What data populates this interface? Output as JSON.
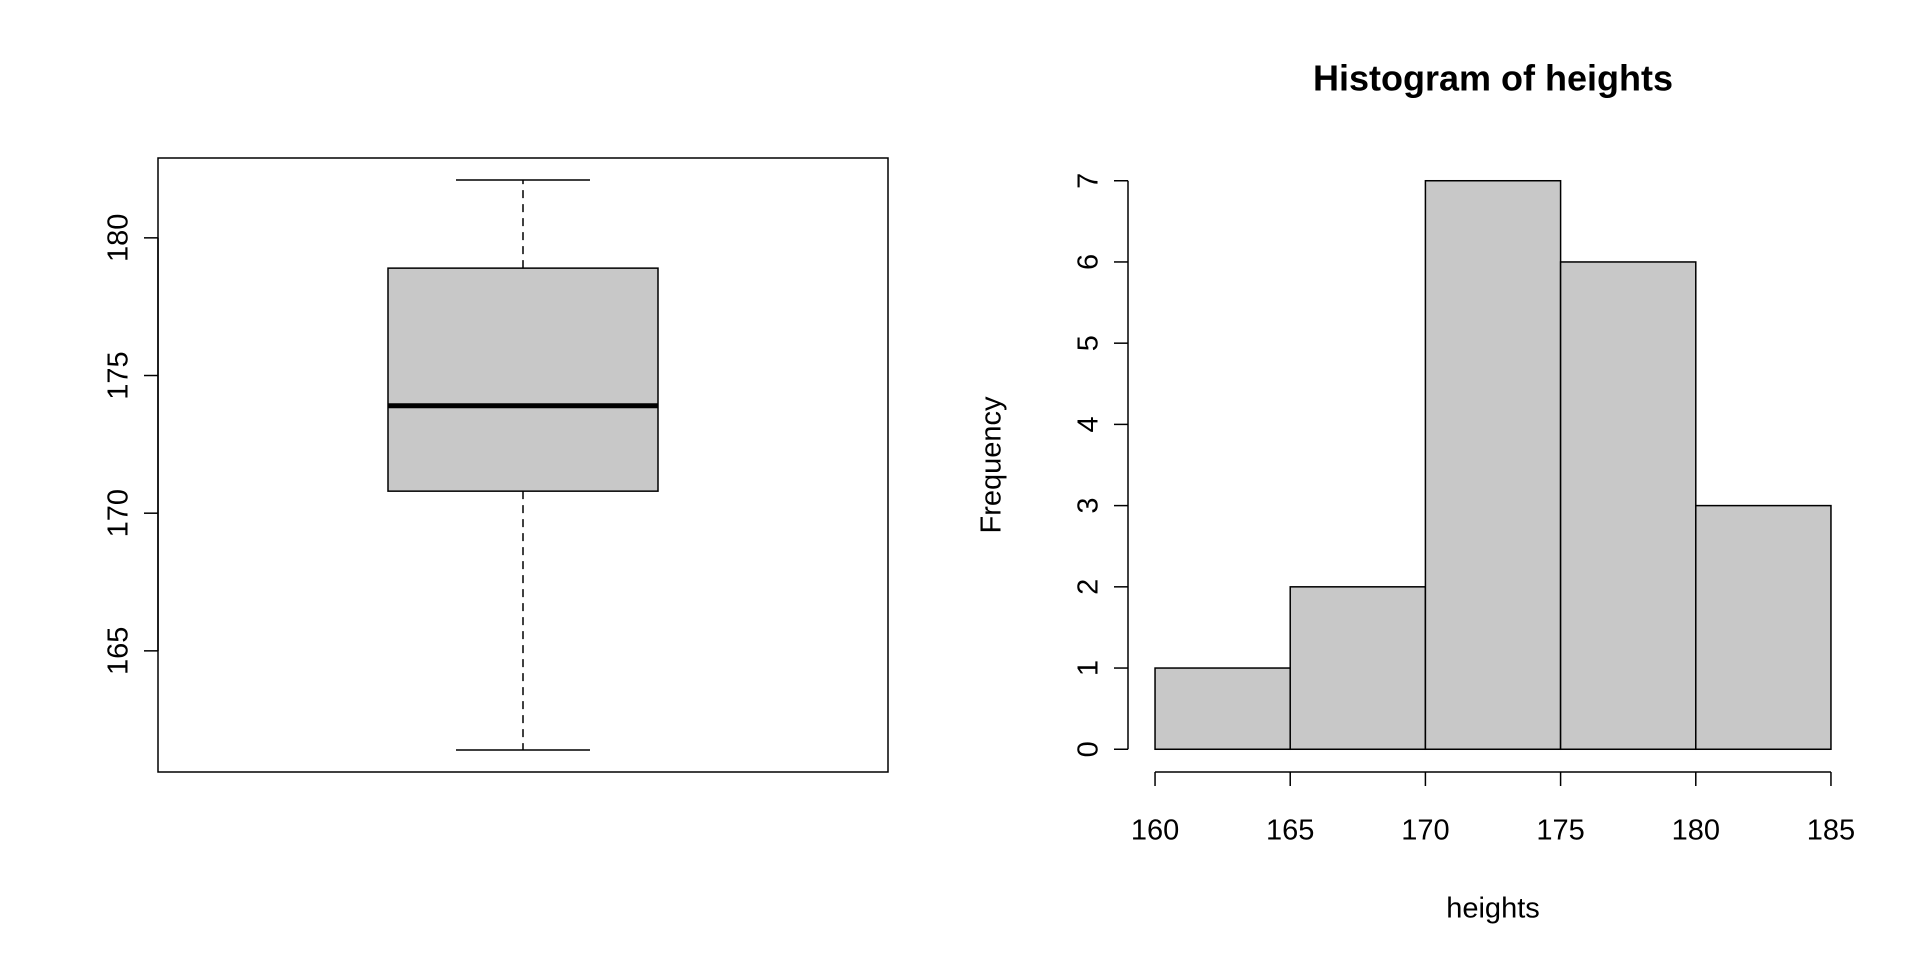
{
  "chart_data": [
    {
      "type": "box",
      "color": "#c8c8c8",
      "min": 161.4,
      "q1": 170.8,
      "median": 173.9,
      "q3": 178.9,
      "max": 182.1,
      "ylim": [
        160.6,
        182.9
      ],
      "yticks": [
        165,
        170,
        175,
        180
      ]
    },
    {
      "type": "histogram",
      "title": "Histogram of heights",
      "xlabel": "heights",
      "ylabel": "Frequency",
      "color": "#c8c8c8",
      "bins": [
        160,
        165,
        170,
        175,
        180,
        185
      ],
      "values": [
        1,
        2,
        7,
        6,
        3
      ],
      "xlim": [
        159,
        186
      ],
      "xticks": [
        160,
        165,
        170,
        175,
        180,
        185
      ],
      "ylim": [
        -0.28,
        7.28
      ],
      "yticks": [
        0,
        1,
        2,
        3,
        4,
        5,
        6,
        7
      ]
    }
  ]
}
